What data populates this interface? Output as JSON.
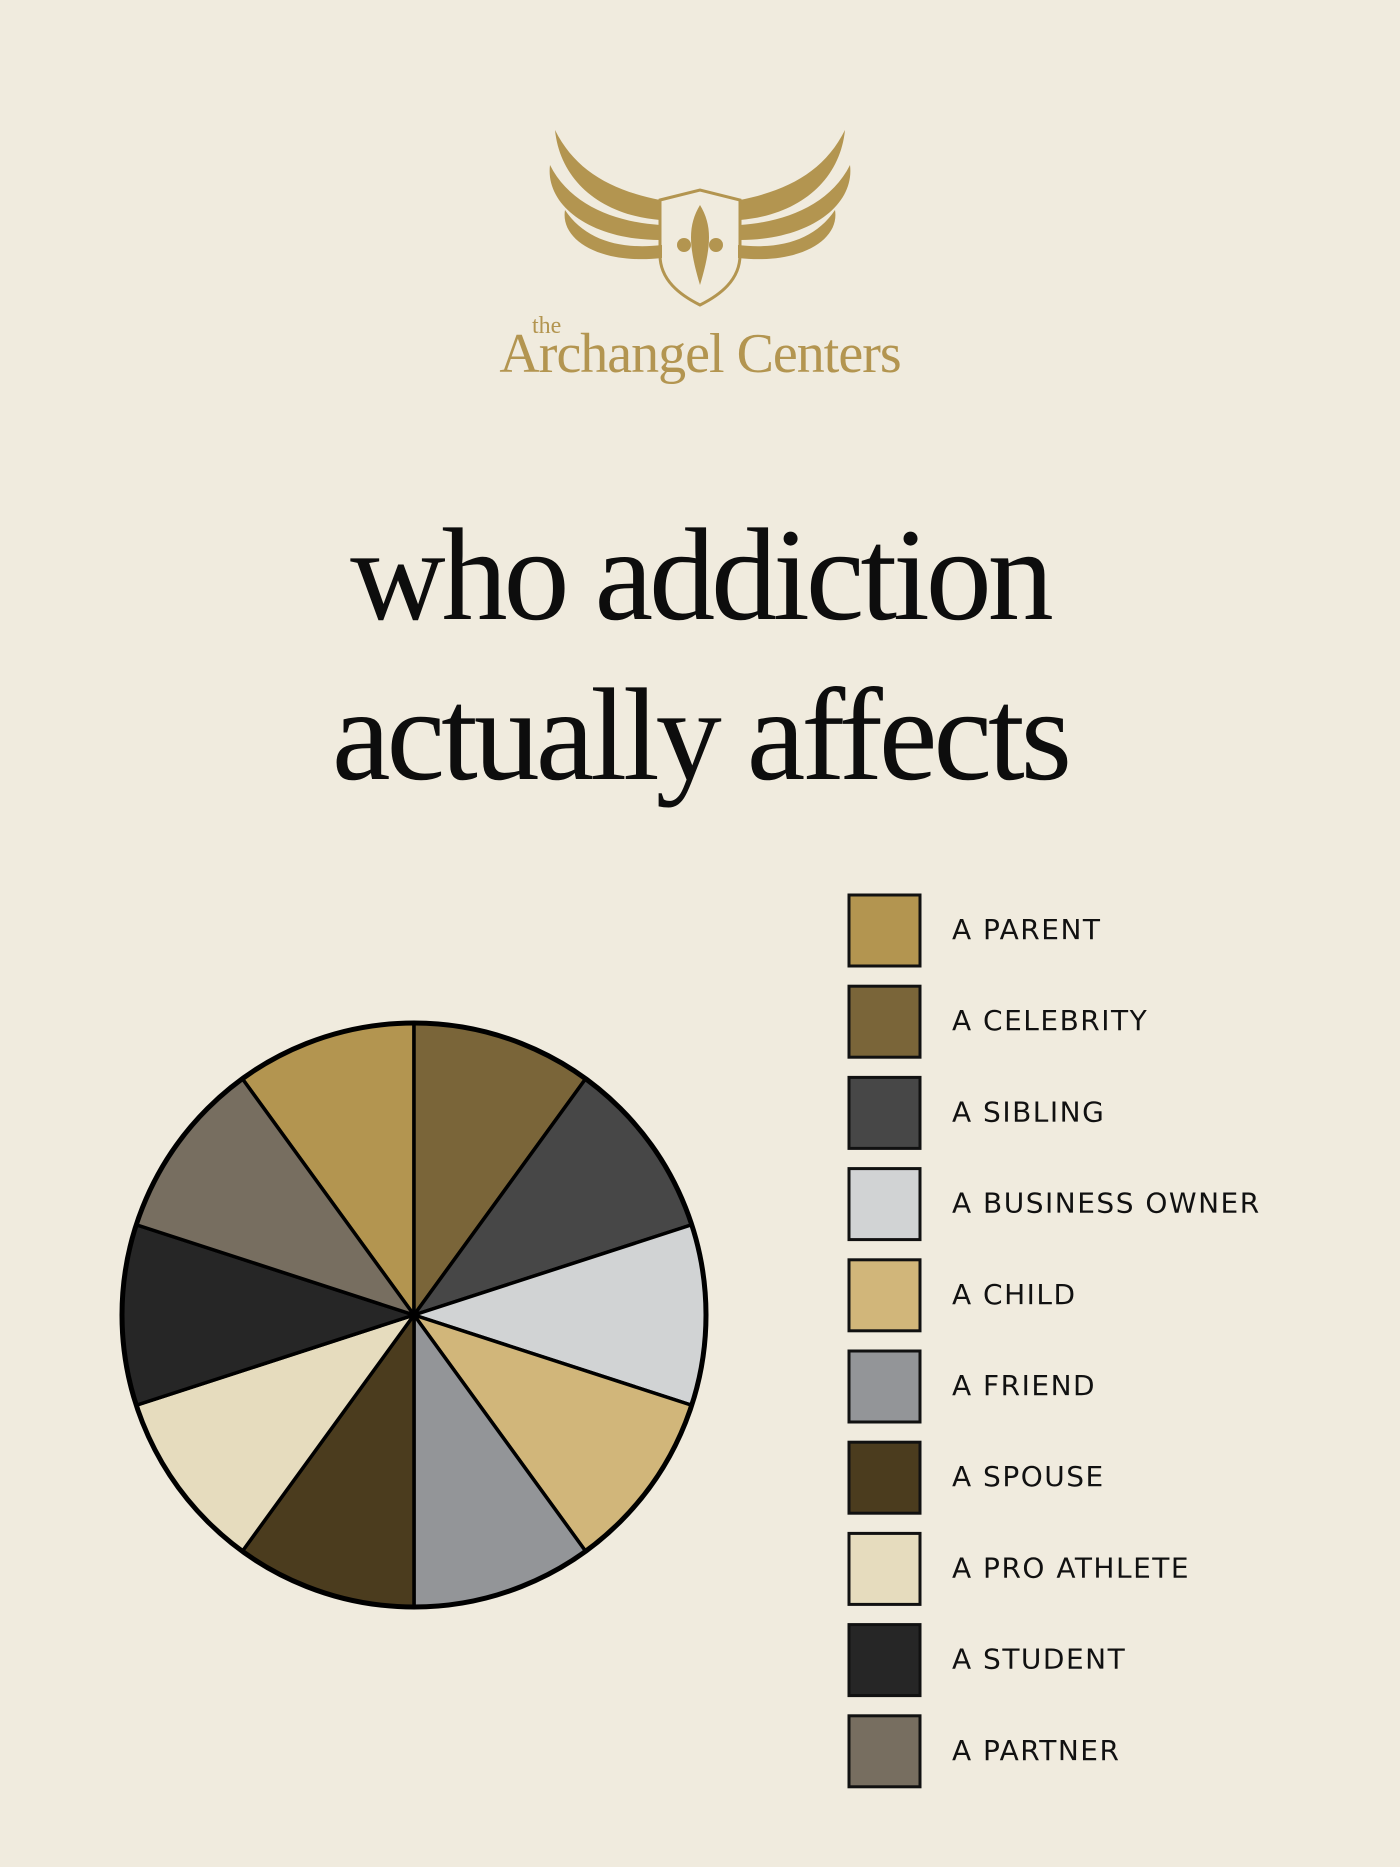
{
  "chart_data": {
    "type": "pie",
    "brand": {
      "prefix": "the",
      "name": "Archangel Centers"
    },
    "title": "who addiction actually affects",
    "categories": [
      "A PARENT",
      "A CELEBRITY",
      "A SIBLING",
      "A BUSINESS OWNER",
      "A CHILD",
      "A FRIEND",
      "A SPOUSE",
      "A PRO ATHLETE",
      "A STUDENT",
      "A PARTNER"
    ],
    "values": [
      10,
      10,
      10,
      10,
      10,
      10,
      10,
      10,
      10,
      10
    ],
    "colors": [
      "#b39550",
      "#7a6539",
      "#474747",
      "#d1d3d4",
      "#d1b67a",
      "#939598",
      "#4b3c1e",
      "#e6dcbe",
      "#262626",
      "#776e60"
    ],
    "startangle": 126,
    "counterclock": false,
    "legend": "right"
  }
}
